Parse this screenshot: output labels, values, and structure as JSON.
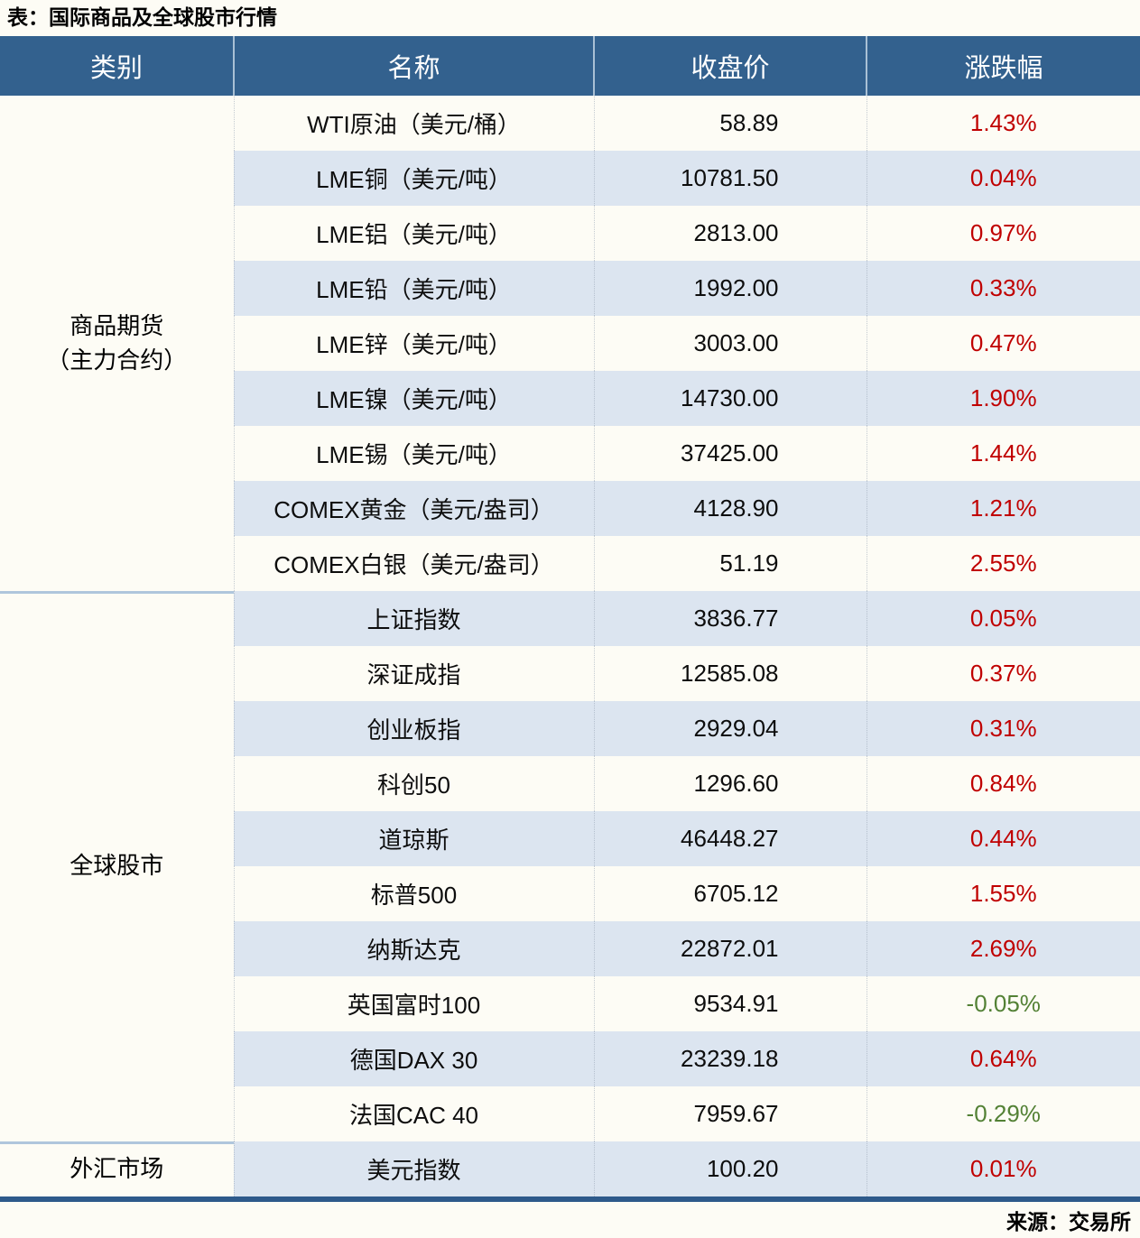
{
  "title": "表：国际商品及全球股市行情",
  "header": {
    "category": "类别",
    "name": "名称",
    "close": "收盘价",
    "change": "涨跌幅"
  },
  "sections": [
    {
      "category": "商品期货\n（主力合约）",
      "rows": [
        {
          "name": "WTI原油（美元/桶）",
          "close": "58.89",
          "change": "1.43%"
        },
        {
          "name": "LME铜（美元/吨）",
          "close": "10781.50",
          "change": "0.04%"
        },
        {
          "name": "LME铝（美元/吨）",
          "close": "2813.00",
          "change": "0.97%"
        },
        {
          "name": "LME铅（美元/吨）",
          "close": "1992.00",
          "change": "0.33%"
        },
        {
          "name": "LME锌（美元/吨）",
          "close": "3003.00",
          "change": "0.47%"
        },
        {
          "name": "LME镍（美元/吨）",
          "close": "14730.00",
          "change": "1.90%"
        },
        {
          "name": "LME锡（美元/吨）",
          "close": "37425.00",
          "change": "1.44%"
        },
        {
          "name": "COMEX黄金（美元/盎司）",
          "close": "4128.90",
          "change": "1.21%"
        },
        {
          "name": "COMEX白银（美元/盎司）",
          "close": "51.19",
          "change": "2.55%"
        }
      ]
    },
    {
      "category": "全球股市",
      "rows": [
        {
          "name": "上证指数",
          "close": "3836.77",
          "change": "0.05%"
        },
        {
          "name": "深证成指",
          "close": "12585.08",
          "change": "0.37%"
        },
        {
          "name": "创业板指",
          "close": "2929.04",
          "change": "0.31%"
        },
        {
          "name": "科创50",
          "close": "1296.60",
          "change": "0.84%"
        },
        {
          "name": "道琼斯",
          "close": "46448.27",
          "change": "0.44%"
        },
        {
          "name": "标普500",
          "close": "6705.12",
          "change": "1.55%"
        },
        {
          "name": "纳斯达克",
          "close": "22872.01",
          "change": "2.69%"
        },
        {
          "name": "英国富时100",
          "close": "9534.91",
          "change": "-0.05%"
        },
        {
          "name": "德国DAX 30",
          "close": "23239.18",
          "change": "0.64%"
        },
        {
          "name": "法国CAC 40",
          "close": "7959.67",
          "change": "-0.29%"
        }
      ]
    },
    {
      "category": "外汇市场",
      "rows": [
        {
          "name": "美元指数",
          "close": "100.20",
          "change": "0.01%"
        }
      ]
    }
  ],
  "footer": {
    "source": "来源：交易所"
  },
  "colors": {
    "header_bg": "#33618E",
    "stripe_bg": "#DCE5F0",
    "up_red": "#C00000",
    "down_green": "#538135",
    "bottom_border_blue": "#2E5A8B",
    "section_separator": "#AFC6DC"
  }
}
